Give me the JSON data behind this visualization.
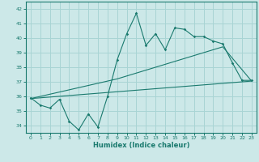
{
  "xlabel": "Humidex (Indice chaleur)",
  "bg_color": "#cce8e8",
  "grid_color": "#a8d4d4",
  "line_color": "#1a7a6e",
  "xlim": [
    -0.5,
    23.5
  ],
  "ylim": [
    33.5,
    42.5
  ],
  "xticks": [
    0,
    1,
    2,
    3,
    4,
    5,
    6,
    7,
    8,
    9,
    10,
    11,
    12,
    13,
    14,
    15,
    16,
    17,
    18,
    19,
    20,
    21,
    22,
    23
  ],
  "yticks": [
    34,
    35,
    36,
    37,
    38,
    39,
    40,
    41,
    42
  ],
  "series1_x": [
    0,
    1,
    2,
    3,
    4,
    5,
    6,
    7,
    8,
    9,
    10,
    11,
    12,
    13,
    14,
    15,
    16,
    17,
    18,
    19,
    20,
    21,
    22,
    23
  ],
  "series1_y": [
    35.9,
    35.4,
    35.2,
    35.8,
    34.3,
    33.7,
    34.8,
    33.9,
    36.0,
    38.5,
    40.3,
    41.7,
    39.5,
    40.3,
    39.2,
    40.7,
    40.6,
    40.1,
    40.1,
    39.8,
    39.6,
    38.3,
    37.1,
    37.1
  ],
  "trend1_x": [
    0,
    23
  ],
  "trend1_y": [
    35.85,
    37.05
  ],
  "trend2_x": [
    0,
    9,
    20,
    23
  ],
  "trend2_y": [
    35.85,
    37.2,
    39.4,
    37.05
  ]
}
